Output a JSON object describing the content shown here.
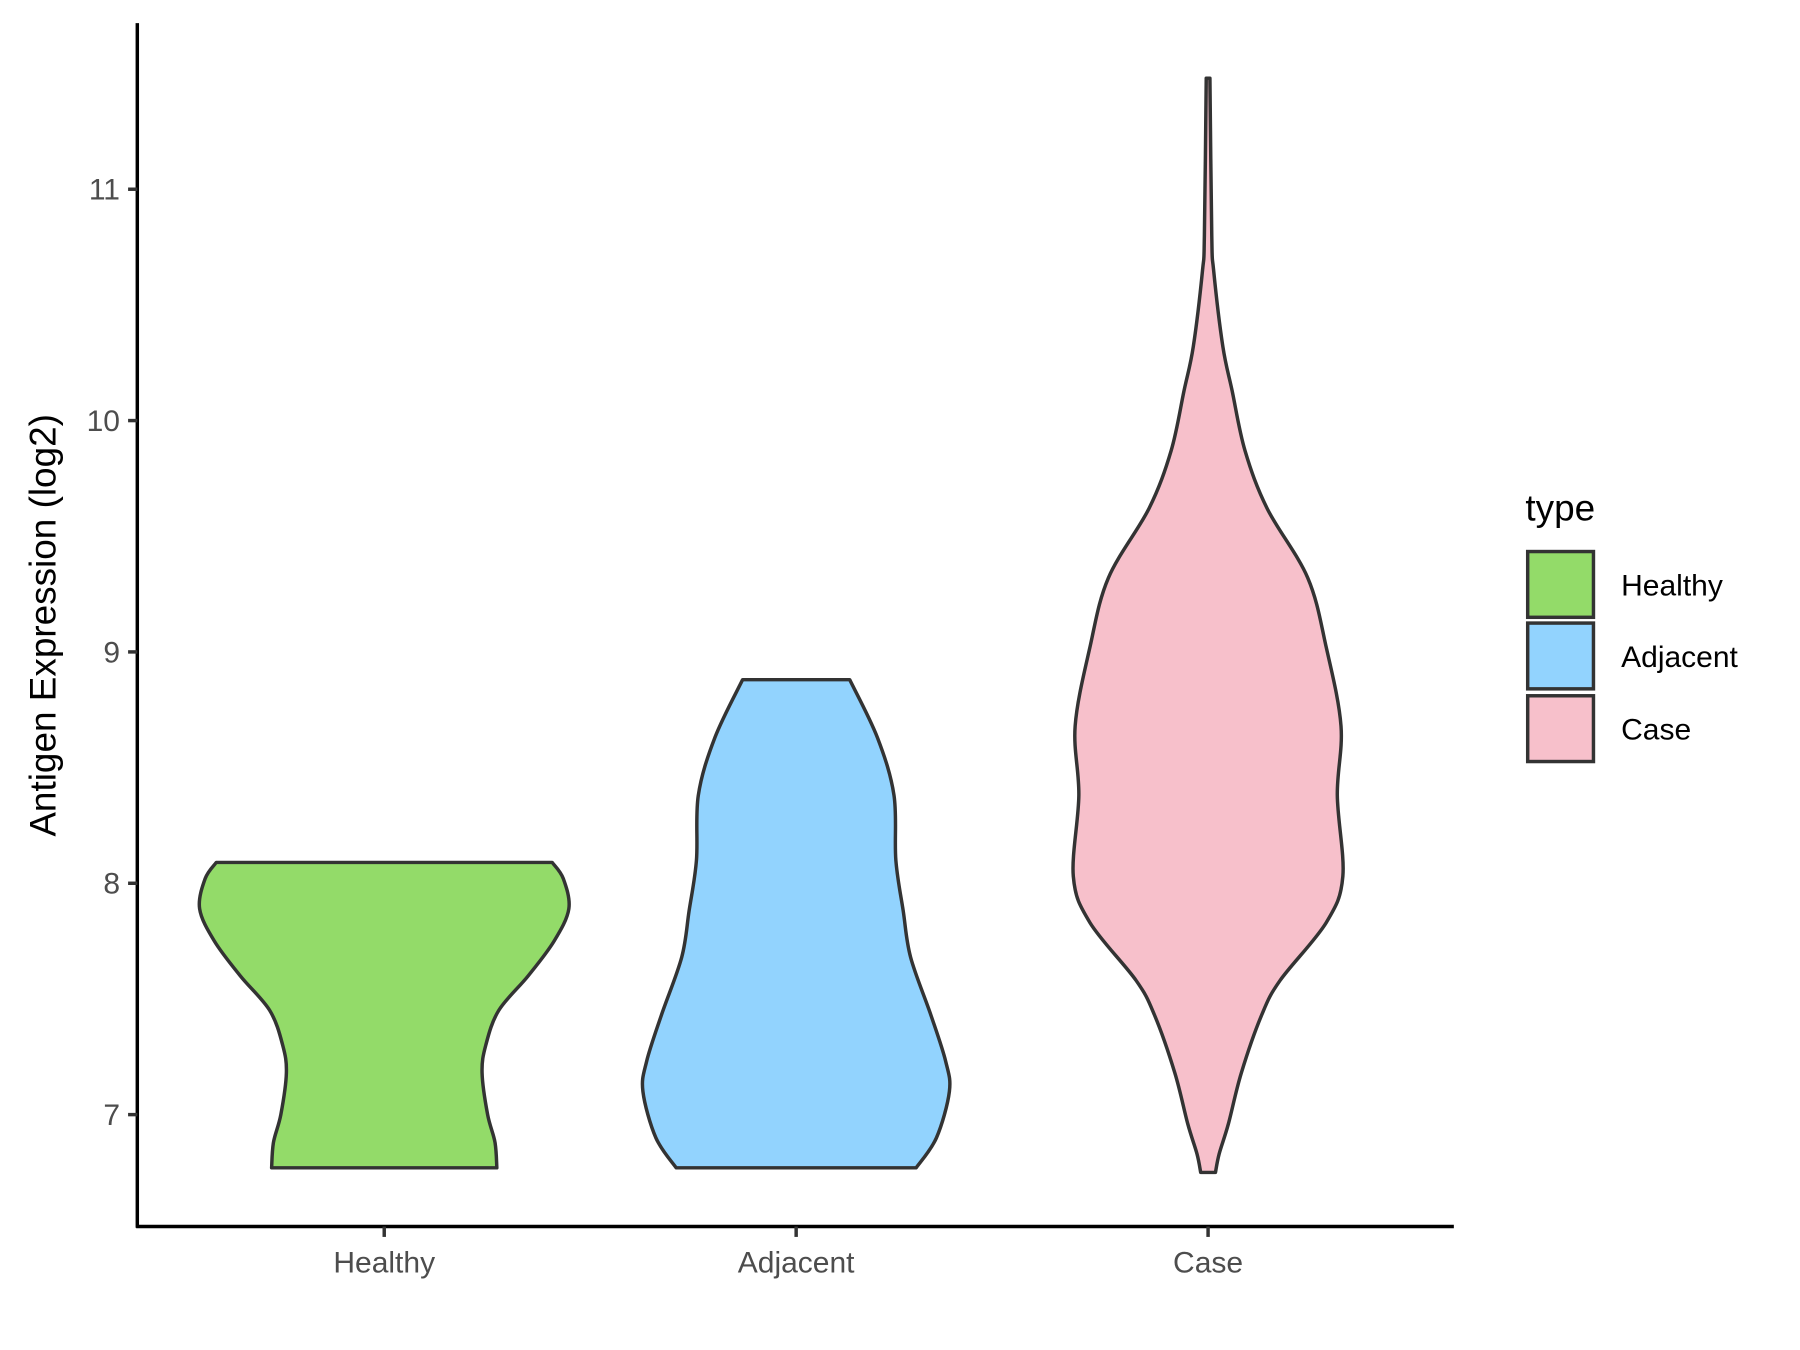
{
  "chart_data": {
    "type": "violin",
    "title": "",
    "xlabel": "",
    "ylabel": "Antigen Expression (log2)",
    "categories": [
      "Healthy",
      "Adjacent",
      "Case"
    ],
    "yticks": [
      7,
      8,
      9,
      10,
      11
    ],
    "ylim": [
      6.52,
      11.72
    ],
    "grid": false,
    "legend": {
      "title": "type",
      "placement": "right",
      "entries": [
        "Healthy",
        "Adjacent",
        "Case"
      ]
    },
    "colors": {
      "Healthy": "#93DB69",
      "Adjacent": "#92D3FE",
      "Case": "#F7C0CB",
      "outline": "#333333"
    },
    "series": [
      {
        "name": "Healthy",
        "min": 6.77,
        "max": 8.09,
        "profile": [
          [
            6.77,
            0.61
          ],
          [
            6.88,
            0.6
          ],
          [
            7.0,
            0.56
          ],
          [
            7.18,
            0.53
          ],
          [
            7.3,
            0.55
          ],
          [
            7.45,
            0.62
          ],
          [
            7.6,
            0.78
          ],
          [
            7.75,
            0.92
          ],
          [
            7.89,
            1.0
          ],
          [
            8.02,
            0.97
          ],
          [
            8.09,
            0.91
          ]
        ]
      },
      {
        "name": "Adjacent",
        "min": 6.77,
        "max": 8.88,
        "profile": [
          [
            6.77,
            0.65
          ],
          [
            6.9,
            0.76
          ],
          [
            7.1,
            0.83
          ],
          [
            7.23,
            0.81
          ],
          [
            7.43,
            0.73
          ],
          [
            7.68,
            0.62
          ],
          [
            7.88,
            0.58
          ],
          [
            8.1,
            0.54
          ],
          [
            8.38,
            0.53
          ],
          [
            8.63,
            0.44
          ],
          [
            8.88,
            0.29
          ]
        ]
      },
      {
        "name": "Case",
        "min": 6.75,
        "max": 11.48,
        "profile": [
          [
            6.75,
            0.04
          ],
          [
            6.83,
            0.06
          ],
          [
            6.96,
            0.11
          ],
          [
            7.18,
            0.18
          ],
          [
            7.43,
            0.29
          ],
          [
            7.58,
            0.39
          ],
          [
            7.83,
            0.64
          ],
          [
            8.03,
            0.73
          ],
          [
            8.38,
            0.7
          ],
          [
            8.68,
            0.72
          ],
          [
            9.02,
            0.64
          ],
          [
            9.32,
            0.54
          ],
          [
            9.62,
            0.32
          ],
          [
            9.87,
            0.2
          ],
          [
            10.13,
            0.13
          ],
          [
            10.32,
            0.08
          ],
          [
            10.65,
            0.03
          ],
          [
            10.8,
            0.02
          ],
          [
            11.48,
            0.01
          ]
        ]
      }
    ]
  }
}
